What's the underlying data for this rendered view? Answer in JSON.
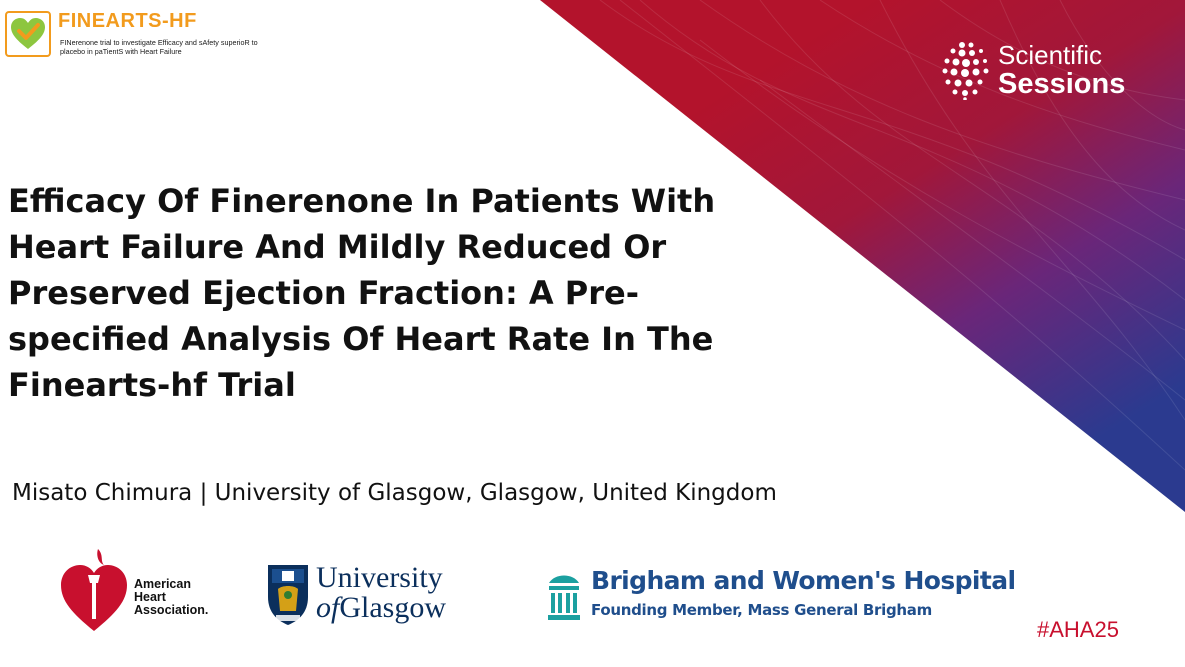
{
  "trial_logo": {
    "name": "FINEARTS-HF",
    "expansion": "FINerenone trial to investigate Efficacy and sAfety superioR to placebo in paTientS with Heart Failure",
    "color": "#f29b1d"
  },
  "sessions_logo": {
    "line1": "Scientific",
    "line2": "Sessions"
  },
  "title": "Efficacy Of Finerenone In Patients With Heart Failure And Mildly Reduced Or Preserved Ejection Fraction: A Pre-specified Analysis Of Heart Rate In The Finearts-hf Trial",
  "author_line": "Misato Chimura | University of Glasgow, Glasgow, United Kingdom",
  "logos": {
    "aha": {
      "lines": [
        "American",
        "Heart",
        "Association."
      ],
      "color": "#c8102e"
    },
    "glasgow": {
      "line1": "University",
      "line2_of": "of",
      "line2_rest": "Glasgow",
      "color": "#0b2f5c"
    },
    "bwh": {
      "name": "Brigham and Women's Hospital",
      "tagline": "Founding Member, Mass General Brigham",
      "color": "#1f4e8c"
    }
  },
  "hashtag": "#AHA25",
  "colors": {
    "corner_red": "#b3132c",
    "corner_purple": "#5a2b82",
    "corner_blue": "#2b3a8f"
  }
}
